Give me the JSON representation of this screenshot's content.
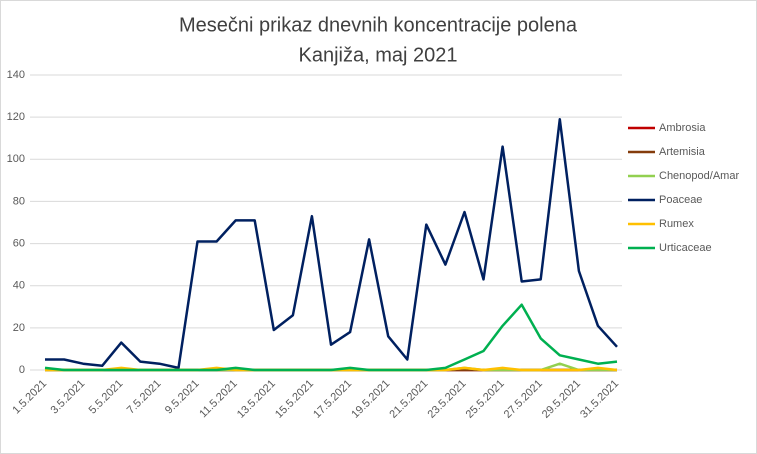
{
  "chart_data": {
    "type": "line",
    "title": "Mesečni prikaz dnevnih koncentracije polena",
    "subtitle": "Kanjiža, maj 2021",
    "categories": [
      "1.5.2021",
      null,
      "3.5.2021",
      null,
      "5.5.2021",
      null,
      "7.5.2021",
      null,
      "9.5.2021",
      null,
      "11.5.2021",
      null,
      "13.5.2021",
      null,
      "15.5.2021",
      null,
      "17.5.2021",
      null,
      "19.5.2021",
      null,
      "21.5.2021",
      null,
      "23.5.2021",
      null,
      "25.5.2021",
      null,
      "27.5.2021",
      null,
      "29.5.2021",
      null,
      "31.5.2021"
    ],
    "ylim": [
      0,
      140
    ],
    "yticks": [
      0,
      20,
      40,
      60,
      80,
      100,
      120,
      140
    ],
    "grid": true,
    "legend": "right",
    "series": [
      {
        "name": "Ambrosia",
        "color": "#c00000",
        "values": [
          0,
          0,
          0,
          0,
          0,
          0,
          0,
          0,
          0,
          0,
          0,
          0,
          0,
          0,
          0,
          0,
          0,
          0,
          0,
          0,
          0,
          0,
          0,
          0,
          0,
          0,
          0,
          0,
          0,
          0,
          0
        ]
      },
      {
        "name": "Artemisia",
        "color": "#843c0c",
        "values": [
          0,
          0,
          0,
          0,
          0,
          0,
          0,
          0,
          0,
          0,
          0,
          0,
          0,
          0,
          0,
          0,
          0,
          0,
          0,
          0,
          0,
          0,
          0,
          0,
          0,
          0,
          0,
          0,
          0,
          0,
          0
        ]
      },
      {
        "name": "Chenopod/Amar",
        "color": "#92d050",
        "values": [
          0,
          0,
          0,
          0,
          0,
          0,
          0,
          0,
          0,
          0,
          0,
          0,
          0,
          0,
          0,
          0,
          0,
          0,
          0,
          0,
          0,
          0,
          1,
          0,
          0,
          0,
          0,
          3,
          0,
          0,
          0
        ]
      },
      {
        "name": "Poaceae",
        "color": "#002060",
        "values": [
          5,
          5,
          3,
          2,
          13,
          4,
          3,
          1,
          61,
          61,
          71,
          71,
          19,
          26,
          73,
          12,
          18,
          62,
          16,
          5,
          69,
          50,
          75,
          43,
          106,
          42,
          43,
          119,
          47,
          21,
          11
        ]
      },
      {
        "name": "Rumex",
        "color": "#ffc000",
        "values": [
          0,
          0,
          0,
          0,
          1,
          0,
          0,
          0,
          0,
          1,
          0,
          0,
          0,
          0,
          0,
          0,
          0,
          0,
          0,
          0,
          0,
          0,
          1,
          0,
          1,
          0,
          0,
          0,
          0,
          1,
          0
        ]
      },
      {
        "name": "Urticaceae",
        "color": "#00b050",
        "values": [
          1,
          0,
          0,
          0,
          0,
          0,
          0,
          0,
          0,
          0,
          1,
          0,
          0,
          0,
          0,
          0,
          1,
          0,
          0,
          0,
          0,
          1,
          5,
          9,
          21,
          31,
          15,
          7,
          5,
          3,
          4
        ]
      }
    ]
  }
}
